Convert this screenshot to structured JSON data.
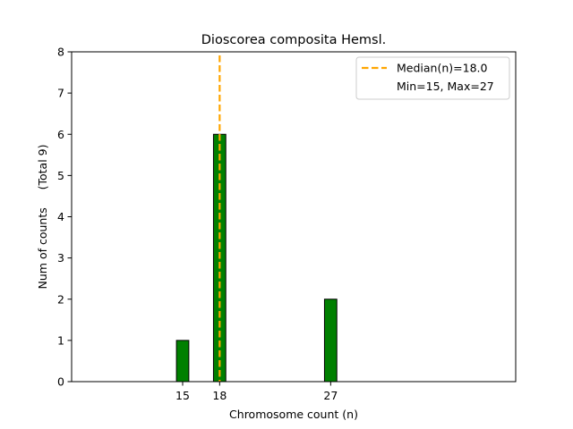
{
  "chart_data": {
    "type": "bar",
    "title": "Dioscorea composita Hemsl.",
    "xlabel": "Chromosome count (n)",
    "ylabel": "Num of counts     (Total 9)",
    "xlim": [
      6,
      42
    ],
    "ylim": [
      0,
      8
    ],
    "x_ticks": [
      15,
      18,
      27
    ],
    "y_ticks": [
      0,
      1,
      2,
      3,
      4,
      5,
      6,
      7,
      8
    ],
    "bins": [
      {
        "x": 15,
        "count": 1
      },
      {
        "x": 18,
        "count": 6
      },
      {
        "x": 27,
        "count": 2
      }
    ],
    "bar_color": "#008000",
    "median": 18.0,
    "median_color": "#FFA500",
    "legend": {
      "position": "top-right",
      "median_label": "Median(n)=18.0",
      "range_label": "Min=15, Max=27"
    },
    "grid": false
  }
}
